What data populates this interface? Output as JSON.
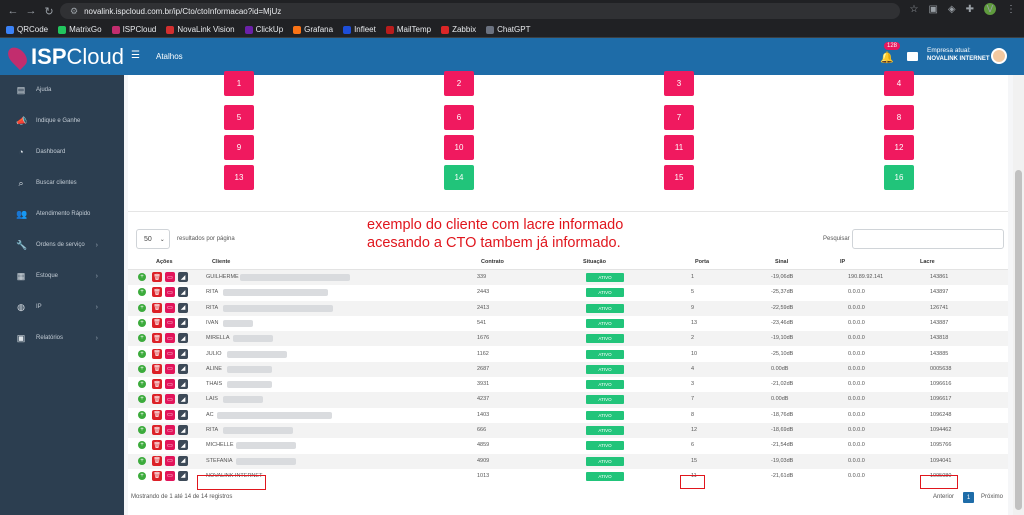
{
  "browser": {
    "url": "novalink.ispcloud.com.br/ip/Cto/ctoInformacao?id=MjUz",
    "bookmarks": [
      "QRCode",
      "MatrixGo",
      "ISPCloud",
      "NovaLink Vision",
      "ClickUp",
      "Grafana",
      "Infleet",
      "MailTemp",
      "Zabbix",
      "ChatGPT"
    ],
    "profile_initial": "V"
  },
  "header": {
    "logo_bold": "ISP",
    "logo_thin": "Cloud",
    "shortcuts": "Atalhos",
    "notifications": "128",
    "company_label": "Empresa atual:",
    "company_name": "NOVALINK INTERNET"
  },
  "sidebar": {
    "items": [
      {
        "label": "Ajuda",
        "icon": "book-icon",
        "arrow": false
      },
      {
        "label": "Indique e Ganhe",
        "icon": "megaphone-icon",
        "arrow": false
      },
      {
        "label": "Dashboard",
        "icon": "dashboard-icon",
        "arrow": false
      },
      {
        "label": "Buscar clientes",
        "icon": "search-icon",
        "arrow": false
      },
      {
        "label": "Atendimento Rápido",
        "icon": "users-icon",
        "arrow": false
      },
      {
        "label": "Ordens de serviço",
        "icon": "wrench-icon",
        "arrow": true
      },
      {
        "label": "Estoque",
        "icon": "box-icon",
        "arrow": true
      },
      {
        "label": "IP",
        "icon": "globe-icon",
        "arrow": true
      },
      {
        "label": "Relatórios",
        "icon": "report-icon",
        "arrow": true
      }
    ]
  },
  "ports": [
    {
      "n": "1",
      "status": "busy"
    },
    {
      "n": "2",
      "status": "busy"
    },
    {
      "n": "3",
      "status": "busy"
    },
    {
      "n": "4",
      "status": "busy"
    },
    {
      "n": "5",
      "status": "busy"
    },
    {
      "n": "6",
      "status": "busy"
    },
    {
      "n": "7",
      "status": "busy"
    },
    {
      "n": "8",
      "status": "busy"
    },
    {
      "n": "9",
      "status": "busy"
    },
    {
      "n": "10",
      "status": "busy"
    },
    {
      "n": "11",
      "status": "busy"
    },
    {
      "n": "12",
      "status": "busy"
    },
    {
      "n": "13",
      "status": "busy"
    },
    {
      "n": "14",
      "status": "free"
    },
    {
      "n": "15",
      "status": "busy"
    },
    {
      "n": "16",
      "status": "free"
    }
  ],
  "annotation": {
    "line1": "exemplo do cliente com lacre informado",
    "line2": "acesando a CTO tambem já informado."
  },
  "table_controls": {
    "per_page": "50",
    "per_page_label": "resultados por página",
    "search_label": "Pesquisar"
  },
  "columns": {
    "actions": "Ações",
    "client": "Cliente",
    "contract": "Contrato",
    "status": "Situação",
    "port": "Porta",
    "signal": "Sinal",
    "ip": "IP",
    "seal": "Lacre"
  },
  "rows": [
    {
      "client": "GUILHERME",
      "contract": "339",
      "status": "ATIVO",
      "port": "1",
      "signal": "-19,06dB",
      "ip": "190.89.92.141",
      "seal": "143861"
    },
    {
      "client": "RITA",
      "contract": "2443",
      "status": "ATIVO",
      "port": "5",
      "signal": "-25,37dB",
      "ip": "0.0.0.0",
      "seal": "143897"
    },
    {
      "client": "RITA",
      "contract": "2413",
      "status": "ATIVO",
      "port": "9",
      "signal": "-22,59dB",
      "ip": "0.0.0.0",
      "seal": "126741"
    },
    {
      "client": "IVAN",
      "contract": "541",
      "status": "ATIVO",
      "port": "13",
      "signal": "-23,46dB",
      "ip": "0.0.0.0",
      "seal": "143887"
    },
    {
      "client": "MIRELLA",
      "contract": "1676",
      "status": "ATIVO",
      "port": "2",
      "signal": "-19,10dB",
      "ip": "0.0.0.0",
      "seal": "143818"
    },
    {
      "client": "JULIO",
      "contract": "1162",
      "status": "ATIVO",
      "port": "10",
      "signal": "-25,10dB",
      "ip": "0.0.0.0",
      "seal": "143885"
    },
    {
      "client": "ALINE",
      "contract": "2687",
      "status": "ATIVO",
      "port": "4",
      "signal": "0.00dB",
      "ip": "0.0.0.0",
      "seal": "0005638"
    },
    {
      "client": "THAIS",
      "contract": "3931",
      "status": "ATIVO",
      "port": "3",
      "signal": "-21,02dB",
      "ip": "0.0.0.0",
      "seal": "1096616"
    },
    {
      "client": "LAIS",
      "contract": "4237",
      "status": "ATIVO",
      "port": "7",
      "signal": "0.00dB",
      "ip": "0.0.0.0",
      "seal": "1096617"
    },
    {
      "client": "AC",
      "contract": "1403",
      "status": "ATIVO",
      "port": "8",
      "signal": "-18,76dB",
      "ip": "0.0.0.0",
      "seal": "1096248"
    },
    {
      "client": "RITA",
      "contract": "666",
      "status": "ATIVO",
      "port": "12",
      "signal": "-18,69dB",
      "ip": "0.0.0.0",
      "seal": "1094462"
    },
    {
      "client": "MICHELLE",
      "contract": "4859",
      "status": "ATIVO",
      "port": "6",
      "signal": "-21,54dB",
      "ip": "0.0.0.0",
      "seal": "1095766"
    },
    {
      "client": "STEFANIA",
      "contract": "4909",
      "status": "ATIVO",
      "port": "15",
      "signal": "-19,03dB",
      "ip": "0.0.0.0",
      "seal": "1094041"
    },
    {
      "client": "NOVALINK INTERNET",
      "contract": "1013",
      "status": "ATIVO",
      "port": "11",
      "signal": "-21,61dB",
      "ip": "0.0.0.0",
      "seal": "1095080"
    }
  ],
  "footer": {
    "info": "Mostrando de 1 até 14 de 14 registros",
    "prev": "Anterior",
    "page": "1",
    "next": "Próximo"
  }
}
